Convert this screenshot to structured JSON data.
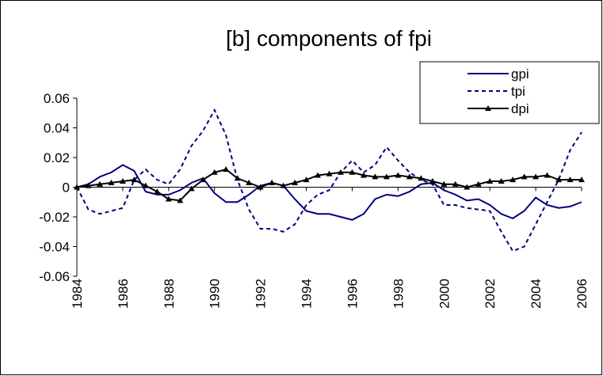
{
  "chart_data": {
    "type": "line",
    "title": "[b] components of fpi",
    "x": [
      1984,
      1984.5,
      1985,
      1985.5,
      1986,
      1986.5,
      1987,
      1987.5,
      1988,
      1988.5,
      1989,
      1989.5,
      1990,
      1990.5,
      1991,
      1991.5,
      1992,
      1992.5,
      1993,
      1993.5,
      1994,
      1994.5,
      1995,
      1995.5,
      1996,
      1996.5,
      1997,
      1997.5,
      1998,
      1998.5,
      1999,
      1999.5,
      2000,
      2000.5,
      2001,
      2001.5,
      2002,
      2002.5,
      2003,
      2003.5,
      2004,
      2004.5,
      2005,
      2005.5,
      2006
    ],
    "series": [
      {
        "name": "gpi",
        "color": "#000080",
        "dash": "solid",
        "marker": "none",
        "values": [
          0,
          0.002,
          0.007,
          0.01,
          0.015,
          0.011,
          -0.003,
          -0.005,
          -0.005,
          -0.002,
          0.003,
          0.006,
          -0.004,
          -0.01,
          -0.01,
          -0.005,
          0.001,
          0.003,
          0.001,
          -0.008,
          -0.016,
          -0.018,
          -0.018,
          -0.02,
          -0.022,
          -0.018,
          -0.008,
          -0.005,
          -0.006,
          -0.003,
          0.002,
          0.003,
          -0.002,
          -0.005,
          -0.009,
          -0.008,
          -0.012,
          -0.018,
          -0.021,
          -0.016,
          -0.007,
          -0.012,
          -0.014,
          -0.013,
          -0.01
        ]
      },
      {
        "name": "tpi",
        "color": "#000080",
        "dash": "dashed",
        "marker": "none",
        "values": [
          0,
          -0.015,
          -0.018,
          -0.016,
          -0.014,
          0.005,
          0.012,
          0.005,
          0.002,
          0.012,
          0.028,
          0.038,
          0.052,
          0.035,
          0.005,
          -0.015,
          -0.028,
          -0.028,
          -0.03,
          -0.025,
          -0.012,
          -0.005,
          -0.002,
          0.01,
          0.018,
          0.01,
          0.015,
          0.027,
          0.018,
          0.01,
          0.005,
          0.002,
          -0.012,
          -0.012,
          -0.014,
          -0.015,
          -0.016,
          -0.03,
          -0.043,
          -0.04,
          -0.025,
          -0.01,
          0.005,
          0.025,
          0.037
        ]
      },
      {
        "name": "dpi",
        "color": "#000000",
        "dash": "solid",
        "marker": "triangle",
        "values": [
          0,
          0.001,
          0.002,
          0.003,
          0.004,
          0.005,
          0.001,
          -0.003,
          -0.008,
          -0.009,
          -0.001,
          0.005,
          0.01,
          0.012,
          0.006,
          0.003,
          0,
          0.003,
          0.001,
          0.003,
          0.005,
          0.008,
          0.009,
          0.01,
          0.01,
          0.008,
          0.007,
          0.007,
          0.008,
          0.007,
          0.006,
          0.004,
          0.002,
          0.002,
          0,
          0.002,
          0.004,
          0.004,
          0.005,
          0.007,
          0.007,
          0.008,
          0.005,
          0.005,
          0.005
        ]
      }
    ],
    "xlim": [
      1984,
      2006
    ],
    "xticks": [
      1984,
      1986,
      1988,
      1990,
      1992,
      1994,
      1996,
      1998,
      2000,
      2002,
      2004,
      2006
    ],
    "ylim": [
      -0.06,
      0.06
    ],
    "yticks": [
      0.06,
      0.04,
      0.02,
      0,
      -0.02,
      -0.04,
      -0.06
    ],
    "legend": "top-right",
    "grid": false
  }
}
